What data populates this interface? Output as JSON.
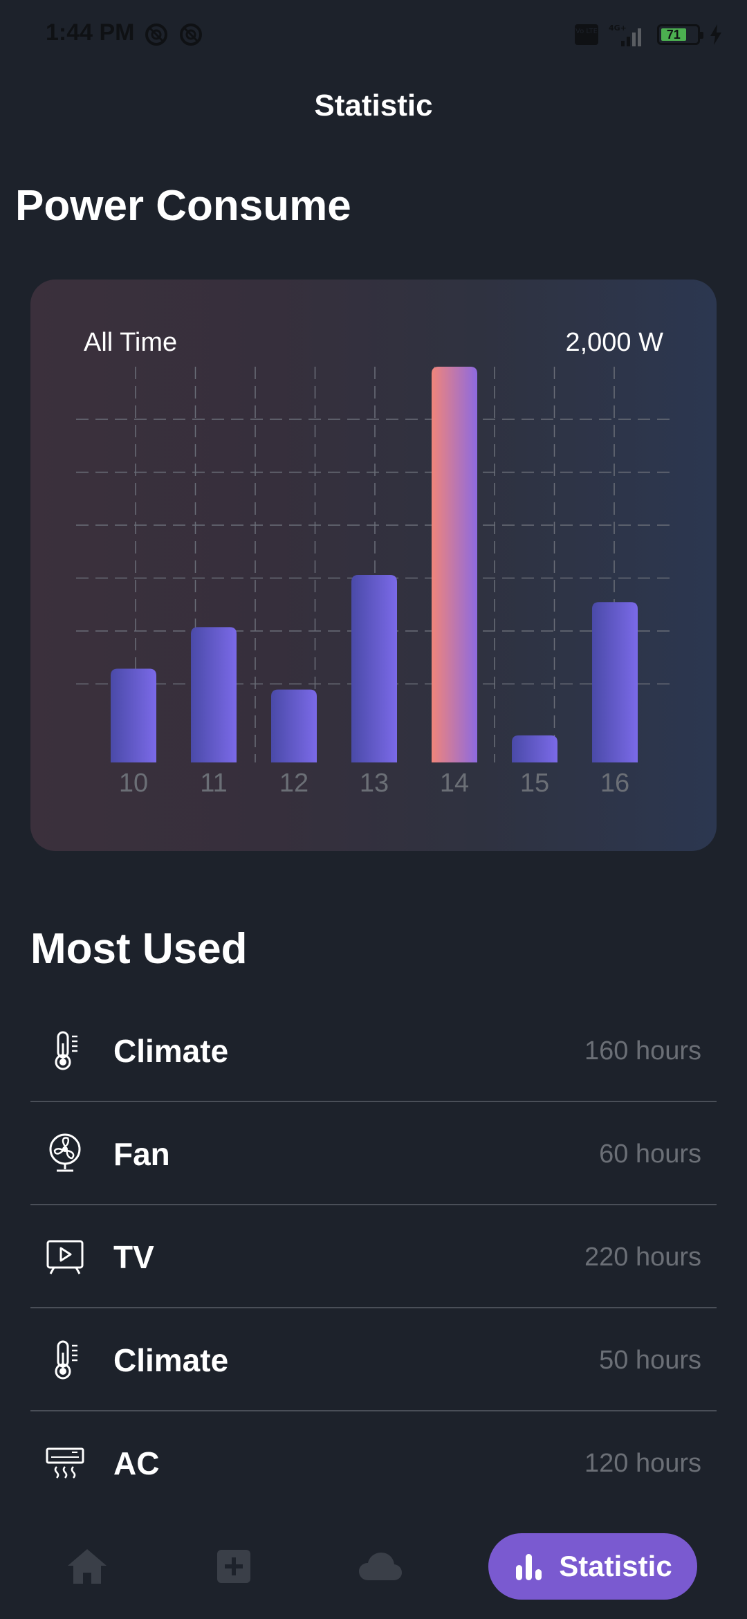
{
  "status_bar": {
    "time": "1:44 PM",
    "battery_level": "71",
    "network": "4G+",
    "volte": "Vo LTE"
  },
  "header": {
    "title": "Statistic"
  },
  "power": {
    "section_title": "Power Consume",
    "range_label": "All Time",
    "max_label": "2,000 W"
  },
  "chart_data": {
    "type": "bar",
    "categories": [
      "10",
      "11",
      "12",
      "13",
      "14",
      "15",
      "16"
    ],
    "values": [
      450,
      650,
      350,
      900,
      1900,
      130,
      770
    ],
    "ylim": [
      0,
      1900
    ],
    "highlight_index": 4,
    "grid": true,
    "colors": {
      "bar_start": "#4a4aa8",
      "bar_end": "#7b6ae8",
      "highlight_start": "#f0857a",
      "highlight_end": "#8d6ae0",
      "tick_label": "#6b6f76",
      "grid": "#6a6e78"
    }
  },
  "most_used": {
    "section_title": "Most Used",
    "items": [
      {
        "name": "Climate",
        "hours": "160 hours",
        "icon": "thermometer-icon"
      },
      {
        "name": "Fan",
        "hours": "60 hours",
        "icon": "fan-icon"
      },
      {
        "name": "TV",
        "hours": "220 hours",
        "icon": "tv-icon"
      },
      {
        "name": "Climate",
        "hours": "50 hours",
        "icon": "thermometer-icon"
      },
      {
        "name": "AC",
        "hours": "120 hours",
        "icon": "air-conditioner-icon"
      }
    ]
  },
  "bottom_nav": {
    "items": [
      {
        "name": "home",
        "icon": "home-icon"
      },
      {
        "name": "add",
        "icon": "add-icon"
      },
      {
        "name": "cloud",
        "icon": "cloud-icon"
      }
    ],
    "active_label": "Statistic",
    "active_icon": "bar-chart-icon",
    "active_color": "#7a5ad0",
    "inactive_color": "#3a3f48"
  }
}
